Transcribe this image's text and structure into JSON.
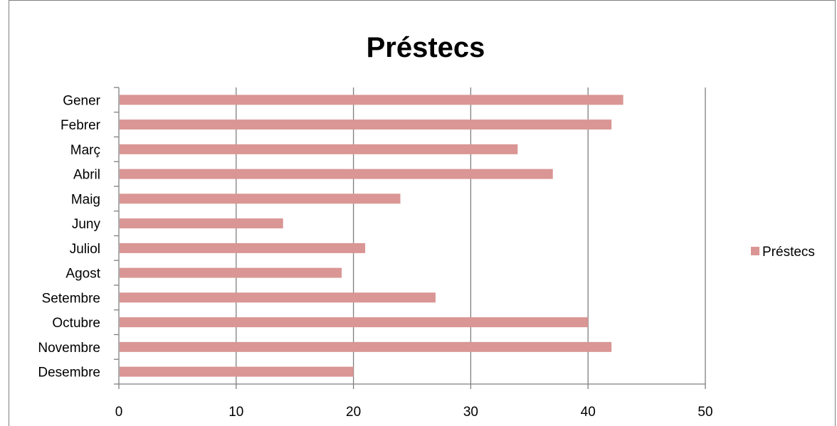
{
  "chart_data": {
    "type": "bar",
    "orientation": "horizontal",
    "title": "Préstecs",
    "categories": [
      "Gener",
      "Febrer",
      "Març",
      "Abril",
      "Maig",
      "Juny",
      "Juliol",
      "Agost",
      "Setembre",
      "Octubre",
      "Novembre",
      "Desembre"
    ],
    "series": [
      {
        "name": "Préstecs",
        "values": [
          43,
          42,
          34,
          37,
          24,
          14,
          21,
          19,
          27,
          40,
          42,
          20
        ],
        "color": "#D99694"
      }
    ],
    "xlim": [
      0,
      50
    ],
    "xticks": [
      "0",
      "10",
      "20",
      "30",
      "40",
      "50"
    ],
    "grid": true,
    "legend": "right"
  }
}
